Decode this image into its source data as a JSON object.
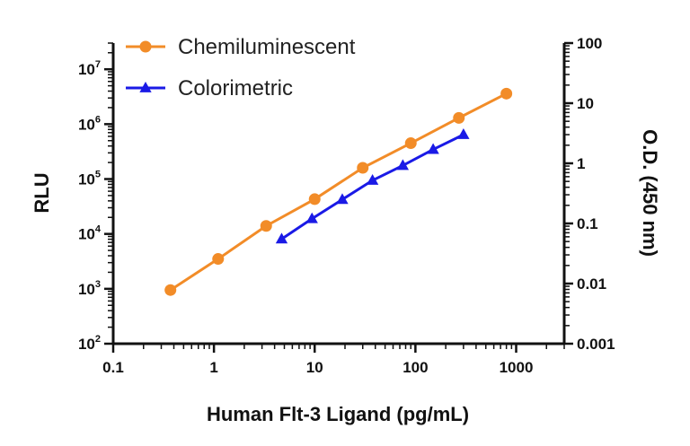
{
  "chart_data": {
    "type": "line",
    "xlabel": "Human Flt-3 Ligand (pg/mL)",
    "ylabel": "RLU",
    "y2label": "O.D. (450 nm)",
    "x_scale": "log",
    "y_scale": "log",
    "y2_scale": "log",
    "xlim": [
      0.1,
      3000
    ],
    "ylim": [
      100,
      30000000
    ],
    "y2lim": [
      0.001,
      100
    ],
    "x_ticks": [
      "0.1",
      "1",
      "10",
      "100",
      "1000"
    ],
    "y_ticks": [
      {
        "base": "10",
        "exp": "2"
      },
      {
        "base": "10",
        "exp": "3"
      },
      {
        "base": "10",
        "exp": "4"
      },
      {
        "base": "10",
        "exp": "5"
      },
      {
        "base": "10",
        "exp": "6"
      },
      {
        "base": "10",
        "exp": "7"
      }
    ],
    "y2_ticks": [
      "0.001",
      "0.01",
      "0.1",
      "1",
      "10",
      "100"
    ],
    "legend_position": "top-left",
    "grid": false,
    "series": [
      {
        "name": "Chemiluminescent",
        "axis": "left",
        "color": "#f28c28",
        "marker": "circle",
        "x": [
          0.37,
          1.1,
          3.3,
          10,
          30,
          90,
          270,
          800
        ],
        "values": [
          950,
          3500,
          14000,
          43000,
          160000,
          450000,
          1300000,
          3600000
        ]
      },
      {
        "name": "Colorimetric",
        "axis": "right",
        "color": "#1a1ae6",
        "marker": "triangle",
        "x": [
          4.7,
          9.4,
          18.8,
          37.5,
          75,
          150,
          300
        ],
        "values": [
          0.055,
          0.12,
          0.25,
          0.52,
          0.92,
          1.7,
          3.0
        ]
      }
    ]
  }
}
